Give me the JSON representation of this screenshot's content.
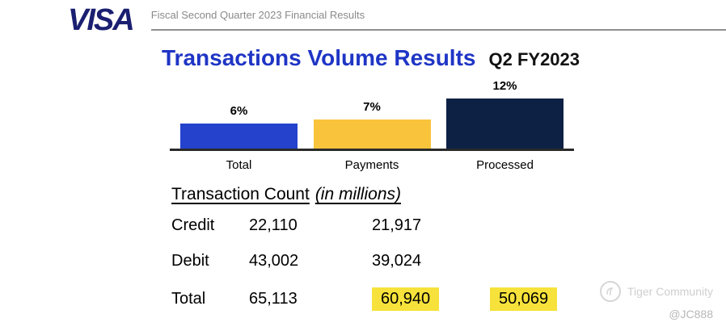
{
  "header": {
    "logo": "VISA",
    "subtitle": "Fiscal Second Quarter 2023 Financial Results"
  },
  "title": {
    "main": "Transactions Volume Results",
    "period": "Q2 FY2023"
  },
  "chart_data": {
    "type": "bar",
    "title": "Transactions Volume Results",
    "period": "Q2 FY2023",
    "categories": [
      "Total",
      "Payments",
      "Processed"
    ],
    "values": [
      6,
      7,
      12
    ],
    "labels": [
      "6%",
      "7%",
      "12%"
    ],
    "colors": [
      "#2442cc",
      "#f9c43c",
      "#0d2145"
    ],
    "ylim": [
      0,
      13
    ],
    "y_axis": "hidden",
    "grid": false,
    "legend": false
  },
  "table": {
    "heading": "Transaction Count",
    "heading_note": "(in millions)",
    "highlight_color": "#f6e23b",
    "columns": [
      "",
      "Total",
      "Payments",
      "Processed"
    ],
    "rows": [
      {
        "label": "Credit",
        "total": "22,110",
        "payments": "21,917",
        "processed": ""
      },
      {
        "label": "Debit",
        "total": "43,002",
        "payments": "39,024",
        "processed": ""
      },
      {
        "label": "Total",
        "total": "65,113",
        "payments": "60,940",
        "processed": "50,069"
      }
    ]
  },
  "watermark": {
    "logo_glyph": "tiger-community-logo",
    "community": "Tiger Community",
    "handle": "@JC888"
  }
}
